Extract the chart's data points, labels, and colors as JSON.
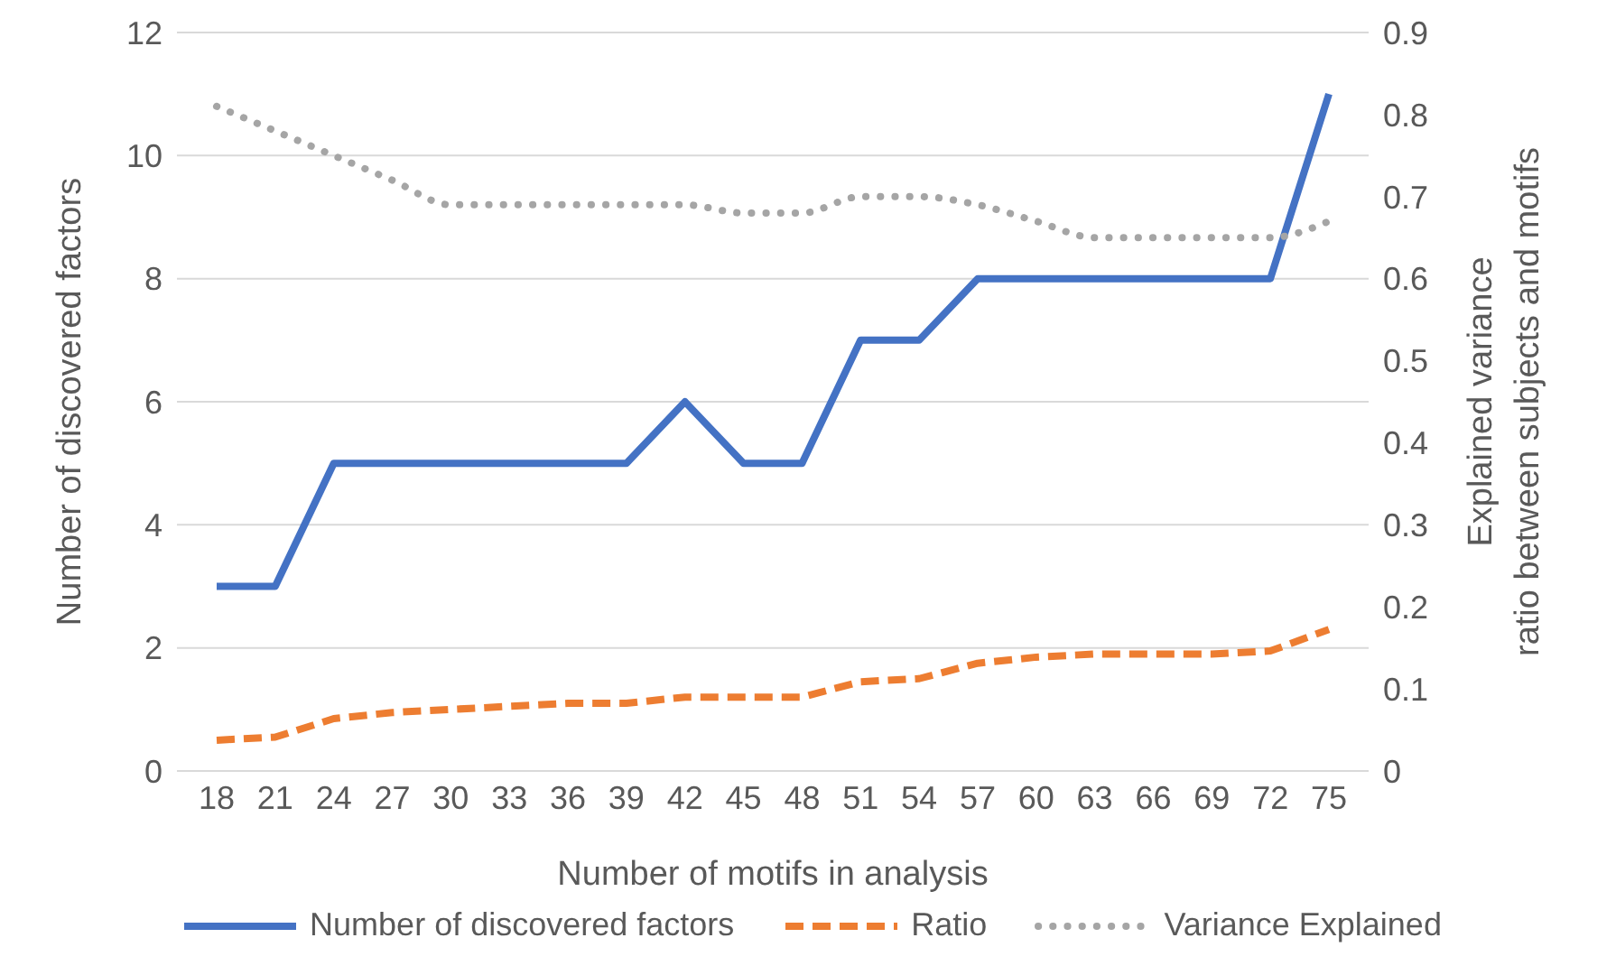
{
  "chart_data": {
    "type": "line",
    "xlabel": "Number of motifs in analysis",
    "ylabel": "Number of discovered factors",
    "y2label": "Explained variance ratio between subjects and motifs",
    "categories": [
      "18",
      "21",
      "24",
      "27",
      "30",
      "33",
      "36",
      "39",
      "42",
      "45",
      "48",
      "51",
      "54",
      "57",
      "60",
      "63",
      "66",
      "69",
      "72",
      "75"
    ],
    "series": [
      {
        "name": "Number of discovered factors",
        "color": "#4472c4",
        "line_style": "solid",
        "values": [
          3,
          3,
          5,
          5,
          5,
          5,
          5,
          5,
          6,
          5,
          5,
          7,
          7,
          8,
          8,
          8,
          8,
          8,
          8,
          11
        ]
      },
      {
        "name": "Ratio",
        "color": "#ed7d31",
        "line_style": "dashed",
        "values": [
          0.5,
          0.55,
          0.85,
          0.95,
          1.0,
          1.05,
          1.1,
          1.1,
          1.2,
          1.2,
          1.2,
          1.45,
          1.5,
          1.75,
          1.85,
          1.9,
          1.9,
          1.9,
          1.95,
          2.3
        ]
      },
      {
        "name": "Variance Explained",
        "color": "#a5a5a5",
        "line_style": "dotted",
        "axis": "y2",
        "values": [
          0.81,
          0.78,
          0.75,
          0.72,
          0.69,
          0.69,
          0.69,
          0.69,
          0.69,
          0.68,
          0.68,
          0.7,
          0.7,
          0.69,
          0.67,
          0.65,
          0.65,
          0.65,
          0.65,
          0.67
        ]
      }
    ],
    "ylim": [
      0,
      12
    ],
    "yticks": [
      0,
      2,
      4,
      6,
      8,
      10,
      12
    ],
    "y2lim": [
      0,
      0.9
    ],
    "y2ticks": [
      0,
      0.1,
      0.2,
      0.3,
      0.4,
      0.5,
      0.6,
      0.7,
      0.8,
      0.9
    ],
    "grid": "y",
    "legend": "bottom",
    "marker": "none"
  }
}
